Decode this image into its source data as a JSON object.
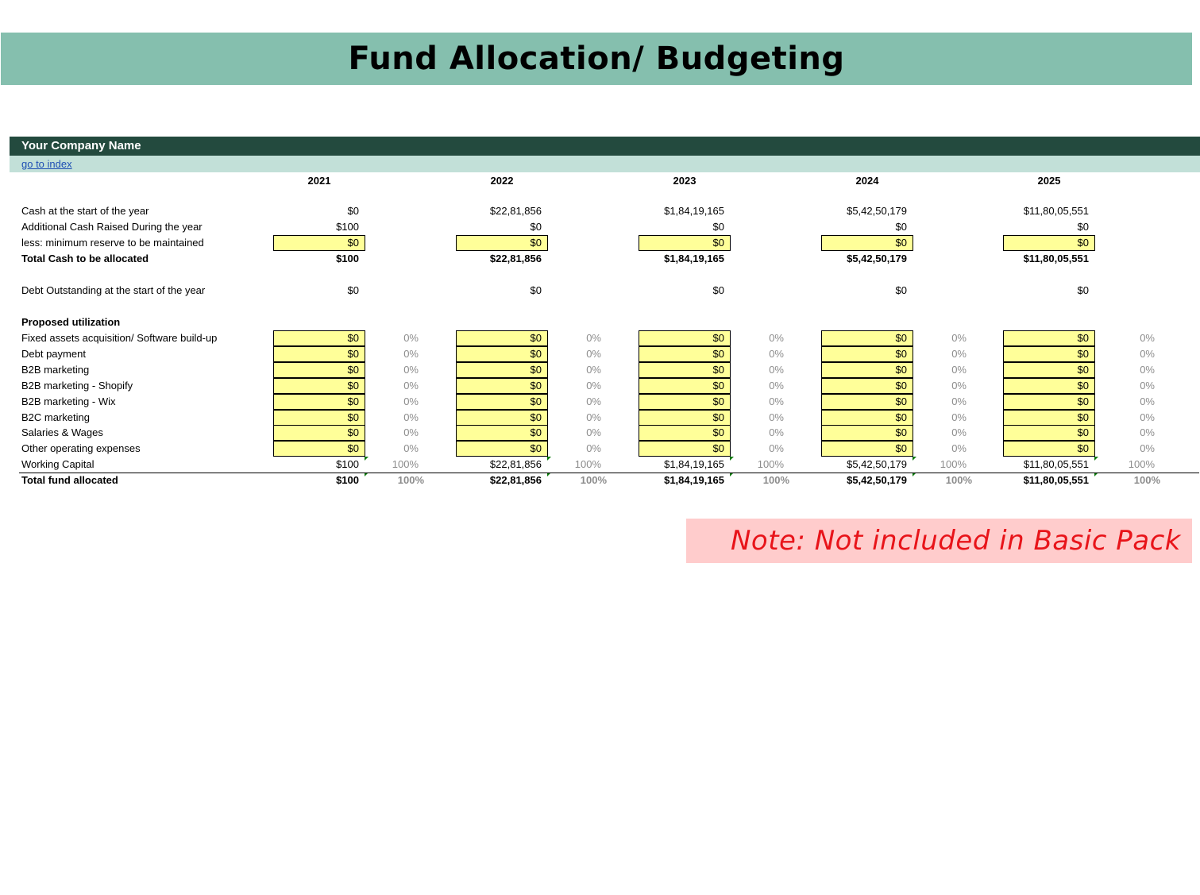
{
  "title": "Fund Allocation/ Budgeting",
  "company_name": "Your Company Name",
  "index_link": "go to index",
  "years": [
    "2021",
    "2022",
    "2023",
    "2024",
    "2025"
  ],
  "rows": [
    {
      "label": "Cash at the start of the year",
      "values": [
        "$0",
        "$22,81,856",
        "$1,84,19,165",
        "$5,42,50,179",
        "$11,80,05,551"
      ]
    },
    {
      "label": "Additional Cash Raised During the year",
      "values": [
        "$100",
        "$0",
        "$0",
        "$0",
        "$0"
      ]
    },
    {
      "label": "less: minimum reserve to be maintained",
      "values": [
        "$0",
        "$0",
        "$0",
        "$0",
        "$0"
      ]
    },
    {
      "label": "Total Cash to be allocated",
      "values": [
        "$100",
        "$22,81,856",
        "$1,84,19,165",
        "$5,42,50,179",
        "$11,80,05,551"
      ]
    },
    {
      "label": "Debt Outstanding at the start of the year",
      "values": [
        "$0",
        "$0",
        "$0",
        "$0",
        "$0"
      ]
    }
  ],
  "proposed_heading": "Proposed utilization",
  "utilization": [
    {
      "label": "Fixed assets acquisition/ Software build-up",
      "values": [
        "$0",
        "$0",
        "$0",
        "$0",
        "$0"
      ],
      "pcts": [
        "0%",
        "0%",
        "0%",
        "0%",
        "0%"
      ]
    },
    {
      "label": "Debt payment",
      "values": [
        "$0",
        "$0",
        "$0",
        "$0",
        "$0"
      ],
      "pcts": [
        "0%",
        "0%",
        "0%",
        "0%",
        "0%"
      ]
    },
    {
      "label": "B2B marketing",
      "values": [
        "$0",
        "$0",
        "$0",
        "$0",
        "$0"
      ],
      "pcts": [
        "0%",
        "0%",
        "0%",
        "0%",
        "0%"
      ]
    },
    {
      "label": "B2B marketing - Shopify",
      "values": [
        "$0",
        "$0",
        "$0",
        "$0",
        "$0"
      ],
      "pcts": [
        "0%",
        "0%",
        "0%",
        "0%",
        "0%"
      ]
    },
    {
      "label": "B2B marketing - Wix",
      "values": [
        "$0",
        "$0",
        "$0",
        "$0",
        "$0"
      ],
      "pcts": [
        "0%",
        "0%",
        "0%",
        "0%",
        "0%"
      ]
    },
    {
      "label": "B2C marketing",
      "values": [
        "$0",
        "$0",
        "$0",
        "$0",
        "$0"
      ],
      "pcts": [
        "0%",
        "0%",
        "0%",
        "0%",
        "0%"
      ]
    },
    {
      "label": "Salaries & Wages",
      "values": [
        "$0",
        "$0",
        "$0",
        "$0",
        "$0"
      ],
      "pcts": [
        "0%",
        "0%",
        "0%",
        "0%",
        "0%"
      ]
    },
    {
      "label": "Other operating expenses",
      "values": [
        "$0",
        "$0",
        "$0",
        "$0",
        "$0"
      ],
      "pcts": [
        "0%",
        "0%",
        "0%",
        "0%",
        "0%"
      ]
    },
    {
      "label": "Working Capital",
      "values": [
        "$100",
        "$22,81,856",
        "$1,84,19,165",
        "$5,42,50,179",
        "$11,80,05,551"
      ],
      "pcts": [
        "100%",
        "100%",
        "100%",
        "100%",
        "100%"
      ]
    }
  ],
  "total_allocated": {
    "label": "Total fund allocated",
    "values": [
      "$100",
      "$22,81,856",
      "$1,84,19,165",
      "$5,42,50,179",
      "$11,80,05,551"
    ],
    "pcts": [
      "100%",
      "100%",
      "100%",
      "100%",
      "100%"
    ]
  },
  "note": "Note: Not included in Basic Pack",
  "colors": {
    "banner": "#85bfae",
    "company_bar": "#234a3e",
    "index_bar": "#c2e0d8",
    "input_fill": "#ffff99",
    "note_bg": "#ffcccc",
    "note_text": "#e8141a"
  }
}
